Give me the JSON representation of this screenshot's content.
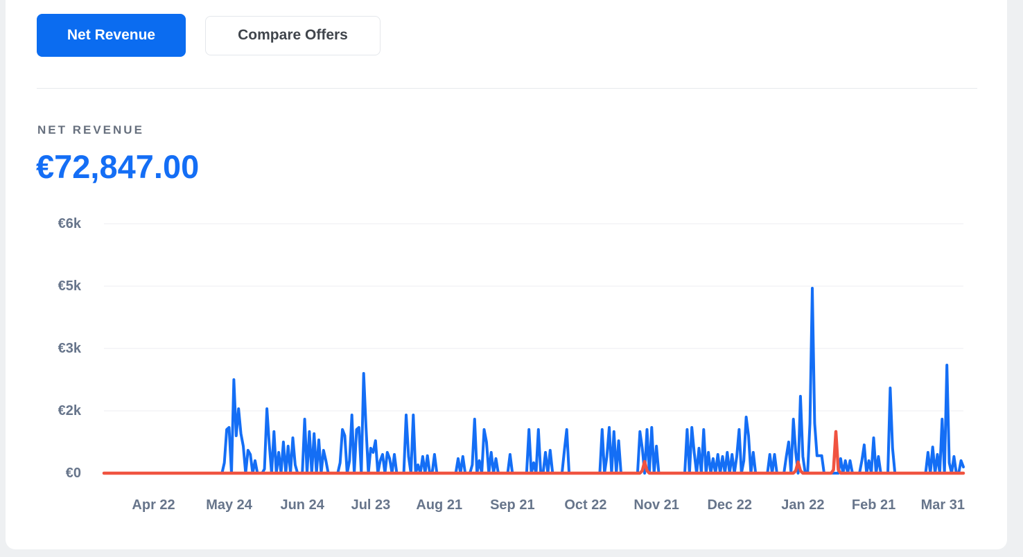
{
  "toolbar": {
    "net_revenue_label": "Net Revenue",
    "compare_offers_label": "Compare Offers"
  },
  "metric": {
    "label": "NET REVENUE",
    "value": "€72,847.00"
  },
  "colors": {
    "accent_blue": "#0b6cf0",
    "line_blue": "#146ef5",
    "line_red": "#f05340",
    "axis_text": "#67758b",
    "grid_line": "#eceef0",
    "metric_value_blue": "#146ef5",
    "page_background": "#eef0f2",
    "card_background": "#ffffff"
  },
  "chart_data": {
    "type": "line",
    "title": "",
    "xlabel": "",
    "ylabel": "",
    "grid": true,
    "legend": "none",
    "ylim": [
      0,
      6000
    ],
    "days_total": 365,
    "x_ticks": [
      {
        "label": "Apr 22",
        "day": 21
      },
      {
        "label": "May 24",
        "day": 53
      },
      {
        "label": "Jun 24",
        "day": 84
      },
      {
        "label": "Jul 23",
        "day": 113
      },
      {
        "label": "Aug 21",
        "day": 142
      },
      {
        "label": "Sep 21",
        "day": 173
      },
      {
        "label": "Oct 22",
        "day": 204
      },
      {
        "label": "Nov 21",
        "day": 234
      },
      {
        "label": "Dec 22",
        "day": 265
      },
      {
        "label": "Jan 22",
        "day": 296
      },
      {
        "label": "Feb 21",
        "day": 326
      },
      {
        "label": "Mar 31",
        "day": 364
      }
    ],
    "y_ticks": [
      {
        "label": "€6k",
        "value": 6000
      },
      {
        "label": "€5k",
        "value": 4500
      },
      {
        "label": "€3k",
        "value": 3000
      },
      {
        "label": "€2k",
        "value": 1500
      },
      {
        "label": "€0",
        "value": 0
      }
    ],
    "series": [
      {
        "name": "blue-series",
        "color": "#146ef5",
        "default_value": 0,
        "points": [
          [
            51,
            250
          ],
          [
            52,
            1050
          ],
          [
            53,
            1100
          ],
          [
            55,
            2250
          ],
          [
            56,
            900
          ],
          [
            57,
            1550
          ],
          [
            58,
            950
          ],
          [
            59,
            650
          ],
          [
            61,
            550
          ],
          [
            62,
            450
          ],
          [
            64,
            300
          ],
          [
            68,
            100
          ],
          [
            69,
            1550
          ],
          [
            70,
            700
          ],
          [
            72,
            1000
          ],
          [
            74,
            500
          ],
          [
            76,
            750
          ],
          [
            78,
            650
          ],
          [
            80,
            850
          ],
          [
            81,
            200
          ],
          [
            85,
            1300
          ],
          [
            87,
            1000
          ],
          [
            89,
            950
          ],
          [
            91,
            800
          ],
          [
            93,
            550
          ],
          [
            94,
            300
          ],
          [
            100,
            250
          ],
          [
            101,
            1050
          ],
          [
            102,
            900
          ],
          [
            104,
            300
          ],
          [
            105,
            1400
          ],
          [
            107,
            1050
          ],
          [
            108,
            1100
          ],
          [
            110,
            2400
          ],
          [
            111,
            1100
          ],
          [
            113,
            600
          ],
          [
            114,
            500
          ],
          [
            115,
            780
          ],
          [
            117,
            300
          ],
          [
            118,
            450
          ],
          [
            120,
            500
          ],
          [
            121,
            350
          ],
          [
            123,
            450
          ],
          [
            128,
            1400
          ],
          [
            129,
            400
          ],
          [
            131,
            1400
          ],
          [
            133,
            200
          ],
          [
            135,
            400
          ],
          [
            137,
            420
          ],
          [
            140,
            450
          ],
          [
            150,
            350
          ],
          [
            152,
            400
          ],
          [
            156,
            200
          ],
          [
            157,
            1300
          ],
          [
            159,
            300
          ],
          [
            161,
            1050
          ],
          [
            162,
            750
          ],
          [
            164,
            500
          ],
          [
            166,
            350
          ],
          [
            172,
            450
          ],
          [
            180,
            1050
          ],
          [
            182,
            250
          ],
          [
            184,
            1050
          ],
          [
            187,
            500
          ],
          [
            189,
            550
          ],
          [
            195,
            550
          ],
          [
            196,
            1050
          ],
          [
            211,
            1050
          ],
          [
            213,
            400
          ],
          [
            214,
            1100
          ],
          [
            216,
            1000
          ],
          [
            218,
            780
          ],
          [
            227,
            1000
          ],
          [
            228,
            600
          ],
          [
            230,
            1050
          ],
          [
            232,
            1100
          ],
          [
            234,
            650
          ],
          [
            247,
            1050
          ],
          [
            249,
            1100
          ],
          [
            250,
            500
          ],
          [
            252,
            600
          ],
          [
            254,
            1050
          ],
          [
            256,
            500
          ],
          [
            258,
            350
          ],
          [
            260,
            450
          ],
          [
            262,
            400
          ],
          [
            264,
            500
          ],
          [
            266,
            450
          ],
          [
            268,
            400
          ],
          [
            269,
            1050
          ],
          [
            271,
            300
          ],
          [
            272,
            1350
          ],
          [
            273,
            900
          ],
          [
            275,
            500
          ],
          [
            282,
            450
          ],
          [
            284,
            450
          ],
          [
            289,
            400
          ],
          [
            290,
            750
          ],
          [
            292,
            1300
          ],
          [
            293,
            500
          ],
          [
            295,
            1850
          ],
          [
            296,
            400
          ],
          [
            299,
            1200
          ],
          [
            300,
            4450
          ],
          [
            301,
            1200
          ],
          [
            302,
            420
          ],
          [
            303,
            420
          ],
          [
            304,
            420
          ],
          [
            312,
            350
          ],
          [
            314,
            300
          ],
          [
            316,
            300
          ],
          [
            321,
            300
          ],
          [
            322,
            680
          ],
          [
            324,
            300
          ],
          [
            326,
            850
          ],
          [
            328,
            400
          ],
          [
            333,
            2050
          ],
          [
            334,
            600
          ],
          [
            349,
            500
          ],
          [
            351,
            630
          ],
          [
            353,
            450
          ],
          [
            355,
            1300
          ],
          [
            357,
            2600
          ],
          [
            358,
            250
          ],
          [
            360,
            400
          ],
          [
            363,
            300
          ],
          [
            364,
            150
          ]
        ]
      },
      {
        "name": "red-series",
        "color": "#f05340",
        "default_value": 0,
        "points": [
          [
            228,
            60
          ],
          [
            229,
            280
          ],
          [
            230,
            60
          ],
          [
            293,
            60
          ],
          [
            294,
            270
          ],
          [
            295,
            60
          ],
          [
            309,
            80
          ],
          [
            310,
            1000
          ],
          [
            311,
            80
          ]
        ]
      }
    ]
  }
}
